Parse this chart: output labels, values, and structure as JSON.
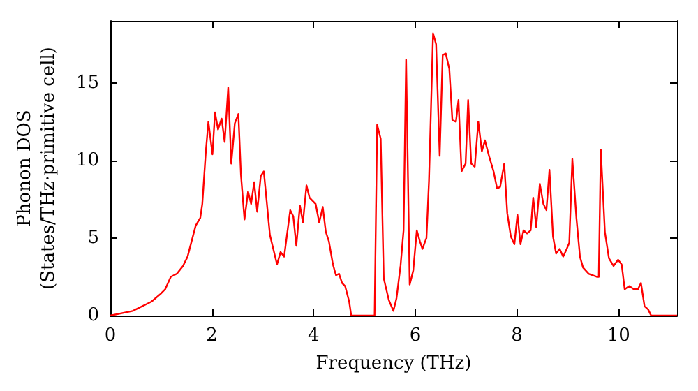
{
  "chart_data": {
    "type": "line",
    "xlabel": "Frequency (THz)",
    "ylabel": "Phonon DOS\n(States/THz·primitive cell)",
    "xlim": [
      0,
      11.15
    ],
    "ylim": [
      0,
      19
    ],
    "xticks": [
      0,
      2,
      4,
      6,
      8,
      10
    ],
    "yticks": [
      0,
      5,
      10,
      15
    ],
    "grid": false,
    "marker": "none",
    "line_style": "solid",
    "series": [
      {
        "color": "#ff0000",
        "x": [
          0,
          0.44,
          0.81,
          0.99,
          1.08,
          1.19,
          1.31,
          1.43,
          1.52,
          1.68,
          1.77,
          1.81,
          1.88,
          1.93,
          2.01,
          2.06,
          2.12,
          2.19,
          2.25,
          2.32,
          2.38,
          2.45,
          2.52,
          2.57,
          2.64,
          2.71,
          2.77,
          2.83,
          2.89,
          2.96,
          3.02,
          3.14,
          3.28,
          3.35,
          3.42,
          3.54,
          3.6,
          3.66,
          3.73,
          3.79,
          3.86,
          3.92,
          4.04,
          4.11,
          4.18,
          4.24,
          4.3,
          4.38,
          4.44,
          4.5,
          4.56,
          4.62,
          4.7,
          4.74,
          5.2,
          5.25,
          5.32,
          5.38,
          5.48,
          5.57,
          5.63,
          5.71,
          5.77,
          5.82,
          5.89,
          5.96,
          6.03,
          6.09,
          6.14,
          6.22,
          6.27,
          6.35,
          6.41,
          6.48,
          6.54,
          6.6,
          6.67,
          6.73,
          6.8,
          6.85,
          6.91,
          6.99,
          7.04,
          7.1,
          7.17,
          7.24,
          7.31,
          7.37,
          7.45,
          7.54,
          7.61,
          7.67,
          7.75,
          7.81,
          7.88,
          7.95,
          8.01,
          8.07,
          8.13,
          8.2,
          8.27,
          8.32,
          8.38,
          8.45,
          8.52,
          8.58,
          8.64,
          8.71,
          8.77,
          8.84,
          8.91,
          8.98,
          9.03,
          9.09,
          9.17,
          9.24,
          9.3,
          9.41,
          9.57,
          9.61,
          9.65,
          9.73,
          9.81,
          9.9,
          9.99,
          10.06,
          10.12,
          10.21,
          10.3,
          10.38,
          10.44,
          10.51,
          10.58,
          10.64,
          11.15
        ],
        "values": [
          0,
          0.3,
          0.9,
          1.4,
          1.7,
          2.5,
          2.7,
          3.2,
          3.8,
          5.8,
          6.3,
          7.2,
          10.6,
          12.5,
          10.4,
          13.1,
          12,
          12.7,
          11.2,
          14.7,
          9.8,
          12.4,
          13,
          9.1,
          6.2,
          8,
          7.2,
          8.6,
          6.7,
          9,
          9.3,
          5.2,
          3.3,
          4.1,
          3.8,
          6.8,
          6.4,
          4.5,
          7.1,
          6,
          8.4,
          7.6,
          7.2,
          6,
          7,
          5.4,
          4.8,
          3.3,
          2.6,
          2.7,
          2.1,
          1.9,
          0.9,
          0,
          0,
          12.3,
          11.4,
          2.4,
          1,
          0.3,
          1.1,
          3.2,
          5.5,
          16.5,
          2,
          2.9,
          5.5,
          4.8,
          4.3,
          5,
          8.7,
          18.2,
          17.5,
          10.3,
          16.8,
          16.9,
          15.9,
          12.6,
          12.5,
          13.9,
          9.3,
          9.8,
          13.9,
          9.8,
          9.6,
          12.5,
          10.6,
          11.3,
          10.3,
          9.3,
          8.2,
          8.3,
          9.8,
          6.6,
          5.1,
          4.6,
          6.5,
          4.6,
          5.5,
          5.3,
          5.5,
          7.6,
          5.7,
          8.5,
          7.2,
          6.8,
          9.4,
          5.1,
          4,
          4.3,
          3.8,
          4.3,
          4.7,
          10.1,
          6.3,
          3.8,
          3.1,
          2.7,
          2.5,
          2.5,
          10.7,
          5.4,
          3.7,
          3.2,
          3.6,
          3.3,
          1.7,
          1.9,
          1.7,
          1.7,
          2.1,
          0.6,
          0.4,
          0,
          0
        ]
      }
    ]
  }
}
